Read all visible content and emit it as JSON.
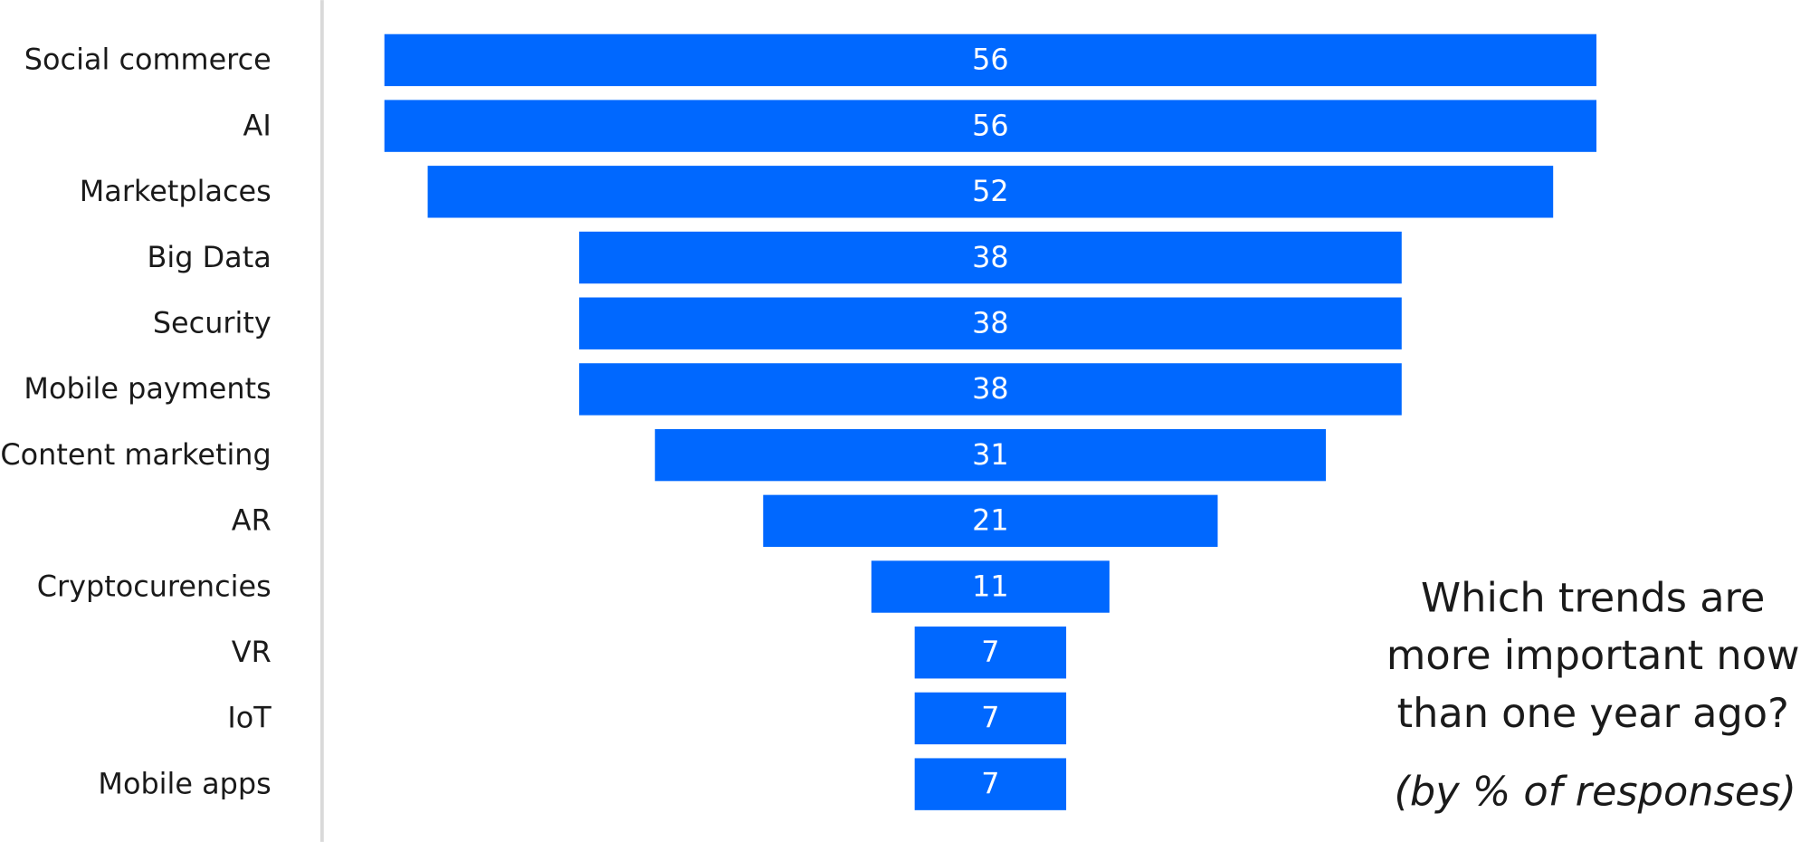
{
  "chart_data": {
    "type": "funnel",
    "title": [
      "Which trends are",
      "more important now",
      "than one year ago?"
    ],
    "subtitle": "(by % of responses)",
    "categories": [
      "Social commerce",
      "AI",
      "Marketplaces",
      "Big Data",
      "Security",
      "Mobile payments",
      "Content marketing",
      "AR",
      "Cryptocurencies",
      "VR",
      "IoT",
      "Mobile apps"
    ],
    "values": [
      56,
      56,
      52,
      38,
      38,
      38,
      31,
      21,
      11,
      7,
      7,
      7
    ],
    "color": "#0068ff"
  }
}
